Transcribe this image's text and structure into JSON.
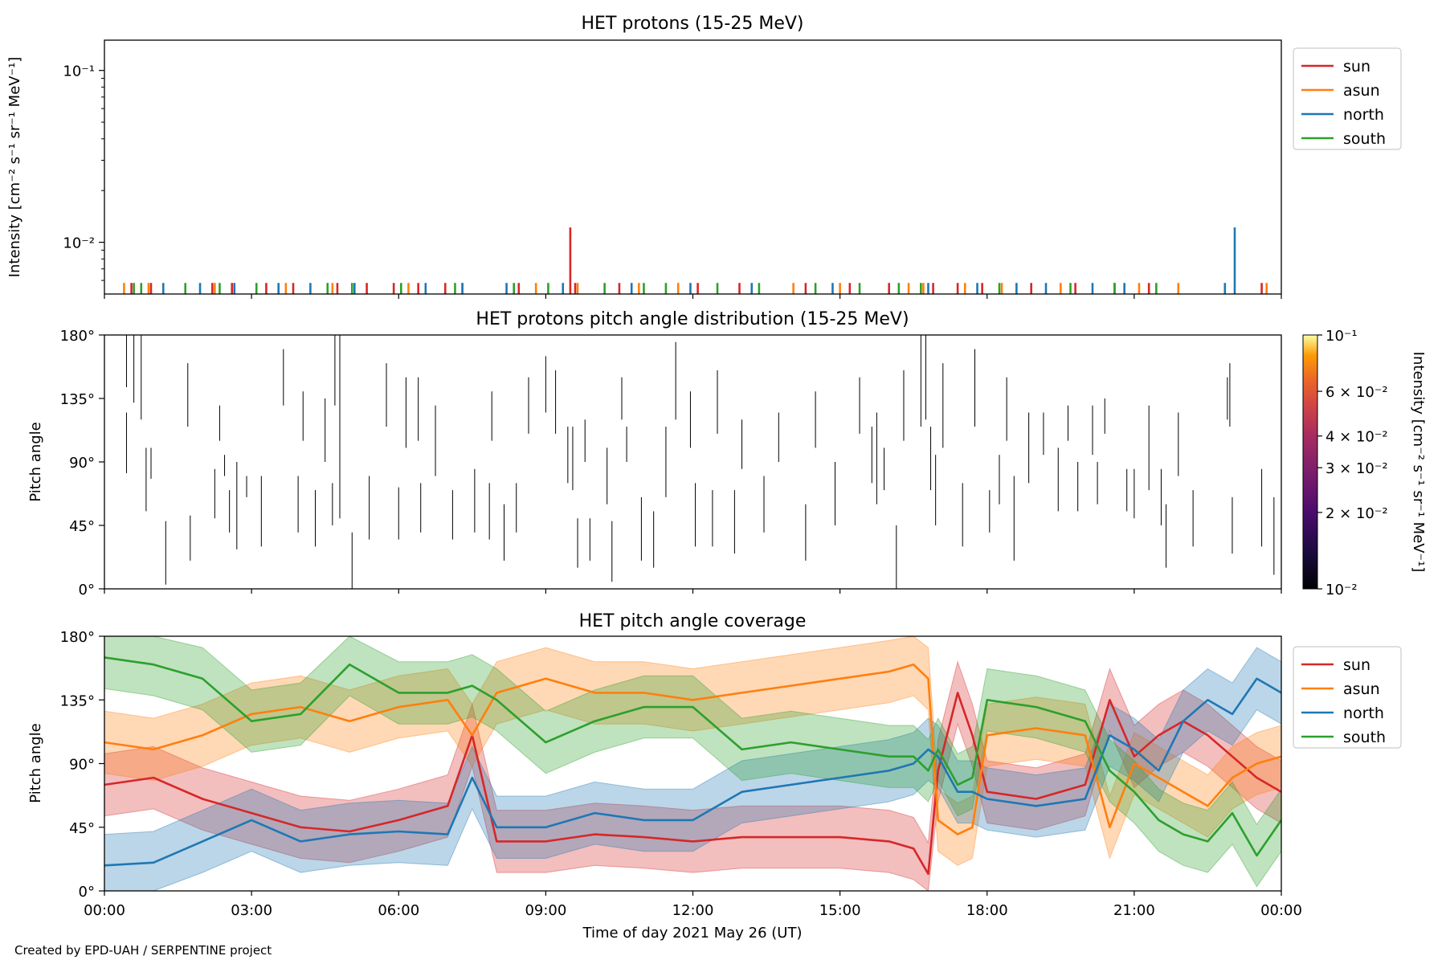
{
  "figure": {
    "credit": "Created by EPD-UAH / SERPENTINE project",
    "xlabel": "Time of day 2021 May 26 (UT)",
    "xticks": [
      "00:00",
      "03:00",
      "06:00",
      "09:00",
      "12:00",
      "15:00",
      "18:00",
      "21:00",
      "00:00"
    ]
  },
  "legend": {
    "items": [
      {
        "name": "sun",
        "color": "#d62728"
      },
      {
        "name": "asun",
        "color": "#ff7f0e"
      },
      {
        "name": "north",
        "color": "#1f77b4"
      },
      {
        "name": "south",
        "color": "#2ca02c"
      }
    ]
  },
  "colorbar": {
    "label": "Intensity [cm⁻² s⁻¹ sr⁻¹ MeV⁻¹]",
    "ticks": [
      "10⁻¹",
      "6 × 10⁻²",
      "4 × 10⁻²",
      "3 × 10⁻²",
      "2 × 10⁻²",
      "10⁻²"
    ],
    "colormap": "inferno",
    "range": [
      0.01,
      0.1
    ]
  },
  "chart_data": [
    {
      "type": "bar",
      "title": "HET protons (15-25 MeV)",
      "ylabel": "Intensity [cm⁻² s⁻¹ sr⁻¹ MeV⁻¹]",
      "yscale": "log",
      "ylim": [
        0.005,
        0.15
      ],
      "yticks": [
        "10⁻¹",
        "10⁻²"
      ],
      "xlim_hours": [
        0,
        24
      ],
      "baseline_value": 0.0055,
      "series": [
        {
          "name": "sun",
          "color": "#d62728",
          "x": [
            0.55,
            0.95,
            2.2,
            2.6,
            3.3,
            3.85,
            4.75,
            5.35,
            5.9,
            6.4,
            6.95,
            8.45,
            9.5,
            9.6,
            10.5,
            12.1,
            12.95,
            14.3,
            15.2,
            16.0,
            16.9,
            17.4,
            17.9,
            18.9,
            19.8,
            20.6,
            21.3,
            23.6
          ],
          "y": [
            0.0058,
            0.0058,
            0.0058,
            0.0058,
            0.0058,
            0.0058,
            0.0058,
            0.0058,
            0.0058,
            0.0058,
            0.0058,
            0.0058,
            0.0122,
            0.0058,
            0.0058,
            0.0058,
            0.0058,
            0.0058,
            0.0058,
            0.0058,
            0.0058,
            0.0058,
            0.0058,
            0.0058,
            0.0058,
            0.0058,
            0.0058,
            0.0058
          ]
        },
        {
          "name": "asun",
          "color": "#ff7f0e",
          "x": [
            0.4,
            0.9,
            2.25,
            3.7,
            4.65,
            6.2,
            7.3,
            8.8,
            9.65,
            10.9,
            11.7,
            14.05,
            15.0,
            16.4,
            16.7,
            17.55,
            18.3,
            19.5,
            21.1,
            21.9,
            23.7
          ],
          "y": [
            0.0058,
            0.0058,
            0.0058,
            0.0058,
            0.0058,
            0.0058,
            0.0058,
            0.0058,
            0.0058,
            0.0058,
            0.0058,
            0.0058,
            0.0058,
            0.0058,
            0.0058,
            0.0058,
            0.0058,
            0.0058,
            0.0058,
            0.0058,
            0.0058
          ]
        },
        {
          "name": "north",
          "color": "#1f77b4",
          "x": [
            1.2,
            1.95,
            2.65,
            3.55,
            4.2,
            5.1,
            6.55,
            7.3,
            8.2,
            9.35,
            10.75,
            11.95,
            13.2,
            14.85,
            16.8,
            17.8,
            18.6,
            19.2,
            20.15,
            20.8,
            22.85,
            23.05
          ],
          "y": [
            0.0058,
            0.0058,
            0.0058,
            0.0058,
            0.0058,
            0.0058,
            0.0058,
            0.0058,
            0.0058,
            0.0058,
            0.0058,
            0.0058,
            0.0058,
            0.0058,
            0.0058,
            0.0058,
            0.0058,
            0.0058,
            0.0058,
            0.0058,
            0.0058,
            0.0122
          ]
        },
        {
          "name": "south",
          "color": "#2ca02c",
          "x": [
            0.6,
            0.75,
            1.65,
            2.35,
            3.1,
            4.55,
            5.05,
            6.05,
            7.15,
            8.35,
            9.05,
            10.2,
            11.0,
            11.45,
            12.5,
            13.35,
            14.5,
            15.4,
            16.2,
            16.65,
            18.25,
            19.7,
            20.6,
            21.45
          ],
          "y": [
            0.0058,
            0.0058,
            0.0058,
            0.0058,
            0.0058,
            0.0058,
            0.0058,
            0.0058,
            0.0058,
            0.0058,
            0.0058,
            0.0058,
            0.0058,
            0.0058,
            0.0058,
            0.0058,
            0.0058,
            0.0058,
            0.0058,
            0.0058,
            0.0058,
            0.0058,
            0.0058,
            0.0058
          ]
        }
      ]
    },
    {
      "type": "heatmap",
      "title": "HET protons pitch angle distribution (15-25 MeV)",
      "ylabel": "Pitch angle",
      "ylim": [
        0,
        180
      ],
      "yticks": [
        "0°",
        "45°",
        "90°",
        "135°",
        "180°"
      ],
      "xlim_hours": [
        0,
        24
      ],
      "segments": [
        [
          0.45,
          143,
          180
        ],
        [
          0.45,
          82,
          125
        ],
        [
          0.6,
          132,
          180
        ],
        [
          0.75,
          120,
          180
        ],
        [
          0.85,
          55,
          100
        ],
        [
          0.95,
          78,
          100
        ],
        [
          1.25,
          3,
          48
        ],
        [
          1.75,
          20,
          52
        ],
        [
          1.7,
          115,
          160
        ],
        [
          2.25,
          50,
          85
        ],
        [
          2.35,
          105,
          130
        ],
        [
          2.45,
          80,
          95
        ],
        [
          2.55,
          40,
          70
        ],
        [
          2.7,
          28,
          90
        ],
        [
          2.9,
          65,
          80
        ],
        [
          3.2,
          30,
          80
        ],
        [
          3.65,
          130,
          170
        ],
        [
          3.95,
          40,
          80
        ],
        [
          4.05,
          105,
          140
        ],
        [
          4.3,
          30,
          70
        ],
        [
          4.5,
          90,
          135
        ],
        [
          4.65,
          45,
          75
        ],
        [
          4.7,
          130,
          180
        ],
        [
          4.8,
          50,
          180
        ],
        [
          5.05,
          0,
          40
        ],
        [
          5.4,
          35,
          80
        ],
        [
          5.75,
          115,
          160
        ],
        [
          6.0,
          35,
          72
        ],
        [
          6.15,
          100,
          150
        ],
        [
          6.4,
          105,
          150
        ],
        [
          6.45,
          40,
          75
        ],
        [
          6.75,
          80,
          130
        ],
        [
          7.1,
          35,
          70
        ],
        [
          7.55,
          40,
          85
        ],
        [
          7.9,
          105,
          140
        ],
        [
          7.85,
          35,
          75
        ],
        [
          8.15,
          20,
          60
        ],
        [
          8.4,
          40,
          75
        ],
        [
          8.65,
          110,
          150
        ],
        [
          9.0,
          125,
          165
        ],
        [
          9.2,
          110,
          155
        ],
        [
          9.45,
          75,
          115
        ],
        [
          9.55,
          70,
          115
        ],
        [
          9.65,
          15,
          50
        ],
        [
          9.8,
          90,
          120
        ],
        [
          9.9,
          20,
          50
        ],
        [
          10.25,
          60,
          100
        ],
        [
          10.35,
          5,
          48
        ],
        [
          10.55,
          120,
          150
        ],
        [
          10.65,
          90,
          115
        ],
        [
          10.95,
          20,
          65
        ],
        [
          11.2,
          15,
          55
        ],
        [
          11.45,
          65,
          115
        ],
        [
          11.65,
          120,
          175
        ],
        [
          11.95,
          100,
          140
        ],
        [
          12.05,
          30,
          75
        ],
        [
          12.4,
          30,
          70
        ],
        [
          12.5,
          110,
          155
        ],
        [
          12.85,
          25,
          70
        ],
        [
          13.0,
          85,
          120
        ],
        [
          13.45,
          40,
          80
        ],
        [
          13.75,
          90,
          125
        ],
        [
          14.3,
          20,
          60
        ],
        [
          14.5,
          100,
          140
        ],
        [
          14.9,
          45,
          90
        ],
        [
          15.4,
          110,
          150
        ],
        [
          15.65,
          75,
          115
        ],
        [
          15.75,
          60,
          125
        ],
        [
          15.9,
          70,
          100
        ],
        [
          16.15,
          0,
          45
        ],
        [
          16.3,
          105,
          155
        ],
        [
          16.65,
          115,
          180
        ],
        [
          16.75,
          120,
          180
        ],
        [
          16.85,
          70,
          115
        ],
        [
          16.95,
          45,
          95
        ],
        [
          17.1,
          100,
          160
        ],
        [
          17.5,
          30,
          75
        ],
        [
          17.75,
          115,
          170
        ],
        [
          18.05,
          40,
          70
        ],
        [
          18.25,
          60,
          95
        ],
        [
          18.4,
          105,
          150
        ],
        [
          18.55,
          20,
          80
        ],
        [
          18.85,
          75,
          125
        ],
        [
          19.15,
          95,
          125
        ],
        [
          19.45,
          55,
          100
        ],
        [
          19.65,
          105,
          130
        ],
        [
          19.85,
          55,
          90
        ],
        [
          20.15,
          95,
          130
        ],
        [
          20.25,
          60,
          90
        ],
        [
          20.4,
          110,
          135
        ],
        [
          20.85,
          55,
          85
        ],
        [
          21.0,
          50,
          85
        ],
        [
          21.3,
          70,
          130
        ],
        [
          21.55,
          45,
          85
        ],
        [
          21.65,
          15,
          60
        ],
        [
          21.9,
          80,
          125
        ],
        [
          22.2,
          30,
          70
        ],
        [
          22.9,
          120,
          150
        ],
        [
          22.95,
          115,
          160
        ],
        [
          23.0,
          25,
          65
        ],
        [
          23.6,
          30,
          85
        ],
        [
          23.85,
          10,
          65
        ]
      ]
    },
    {
      "type": "line",
      "title": "HET pitch angle coverage",
      "ylabel": "Pitch angle",
      "ylim": [
        0,
        180
      ],
      "yticks": [
        "0°",
        "45°",
        "90°",
        "135°",
        "180°"
      ],
      "xlim_hours": [
        0,
        24
      ],
      "band_halfwidth_deg": 22,
      "series": [
        {
          "name": "sun",
          "color": "#d62728",
          "x": [
            0,
            1,
            2,
            3,
            4,
            5,
            6,
            7,
            7.5,
            8,
            9,
            10,
            11,
            12,
            13,
            14,
            15,
            16,
            16.5,
            16.8,
            17,
            17.4,
            17.7,
            18,
            19,
            20,
            20.5,
            21,
            21.5,
            22,
            22.5,
            23,
            23.5,
            24
          ],
          "y": [
            75,
            80,
            65,
            55,
            45,
            42,
            50,
            60,
            110,
            35,
            35,
            40,
            38,
            35,
            38,
            38,
            38,
            35,
            30,
            12,
            85,
            140,
            110,
            70,
            65,
            75,
            135,
            95,
            110,
            120,
            110,
            95,
            80,
            70
          ]
        },
        {
          "name": "asun",
          "color": "#ff7f0e",
          "x": [
            0,
            1,
            2,
            3,
            4,
            5,
            6,
            7,
            7.5,
            8,
            9,
            10,
            11,
            12,
            13,
            14,
            15,
            16,
            16.5,
            16.8,
            17,
            17.4,
            17.7,
            18,
            19,
            20,
            20.5,
            21,
            21.5,
            22,
            22.5,
            23,
            23.5,
            24
          ],
          "y": [
            105,
            100,
            110,
            125,
            130,
            120,
            130,
            135,
            110,
            140,
            150,
            140,
            140,
            135,
            140,
            145,
            150,
            155,
            160,
            150,
            50,
            40,
            45,
            110,
            115,
            110,
            45,
            90,
            80,
            70,
            60,
            80,
            90,
            95
          ]
        },
        {
          "name": "north",
          "color": "#1f77b4",
          "x": [
            0,
            1,
            2,
            3,
            4,
            5,
            6,
            7,
            7.5,
            8,
            9,
            10,
            11,
            12,
            13,
            14,
            15,
            16,
            16.5,
            16.8,
            17,
            17.4,
            17.7,
            18,
            19,
            20,
            20.5,
            21,
            21.5,
            22,
            22.5,
            23,
            23.5,
            24
          ],
          "y": [
            18,
            20,
            35,
            50,
            35,
            40,
            42,
            40,
            80,
            45,
            45,
            55,
            50,
            50,
            70,
            75,
            80,
            85,
            90,
            100,
            95,
            70,
            70,
            65,
            60,
            65,
            110,
            100,
            85,
            120,
            135,
            125,
            150,
            140
          ]
        },
        {
          "name": "south",
          "color": "#2ca02c",
          "x": [
            0,
            1,
            2,
            3,
            4,
            5,
            6,
            7,
            7.5,
            8,
            9,
            10,
            11,
            12,
            13,
            14,
            15,
            16,
            16.5,
            16.8,
            17,
            17.4,
            17.7,
            18,
            19,
            20,
            20.5,
            21,
            21.5,
            22,
            22.5,
            23,
            23.5,
            24
          ],
          "y": [
            165,
            160,
            150,
            120,
            125,
            160,
            140,
            140,
            145,
            135,
            105,
            120,
            130,
            130,
            100,
            105,
            100,
            95,
            95,
            85,
            100,
            75,
            80,
            135,
            130,
            120,
            85,
            70,
            50,
            40,
            35,
            55,
            25,
            50
          ]
        }
      ]
    }
  ]
}
